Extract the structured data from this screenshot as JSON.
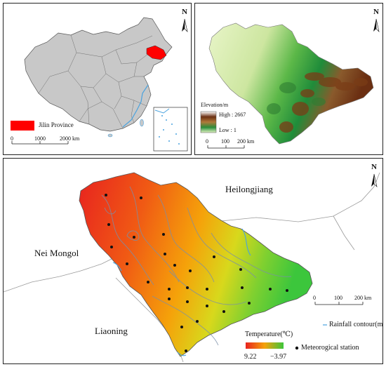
{
  "panel_a": {
    "legend_label": "Jilin Province",
    "north_label": "N",
    "scale_ticks": [
      "0",
      "1000",
      "2000 km"
    ],
    "highlight_color": "#ff0000"
  },
  "panel_b": {
    "north_label": "N",
    "legend_title": "Elevation/m",
    "legend_high": "High : 2667",
    "legend_low": "Low : 1",
    "scale_ticks": [
      "0",
      "100",
      "200 km"
    ]
  },
  "panel_c": {
    "north_label": "N",
    "label_heilongjiang": "Heilongjiang",
    "label_nei_mongol": "Nei Mongol",
    "label_liaoning": "Liaoning",
    "legend_temperature": "Temperature(℃)",
    "legend_rainfall": "Rainfall contour(mm)",
    "legend_station": "Meteorogical station",
    "temp_max": "9.22",
    "temp_min": "−3.97",
    "scale_ticks": [
      "0",
      "100",
      "200 km"
    ],
    "colors": {
      "warm": "#e8231f",
      "mid": "#f5a20a",
      "cool": "#3cc63c"
    }
  }
}
